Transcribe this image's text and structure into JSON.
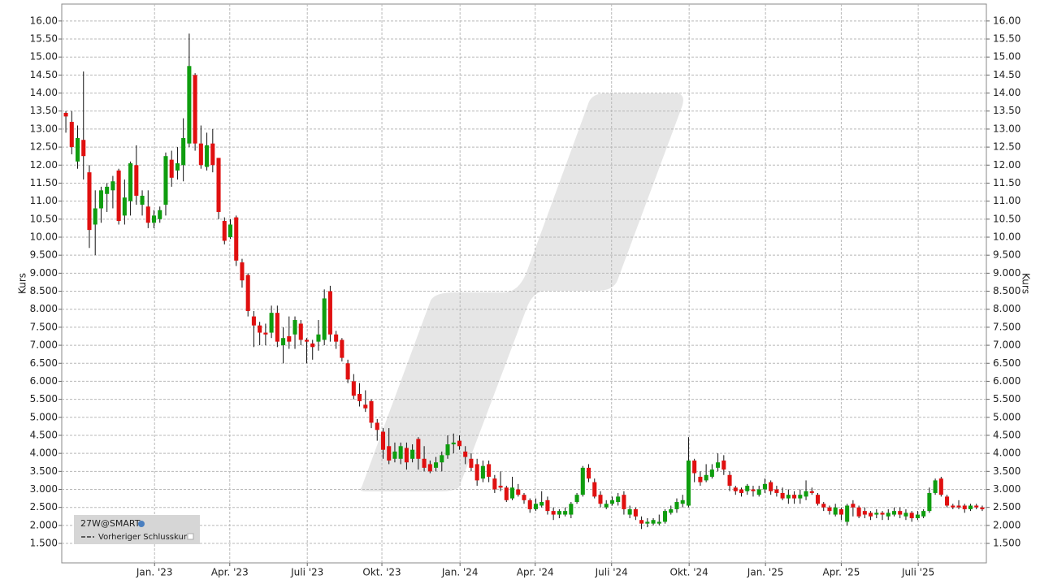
{
  "chart_data": {
    "type": "candlestick",
    "y_label": "Kurs",
    "legend_title": "27W@SMART",
    "legend_entry": "Vorheriger Schlusskurs",
    "up_color": "#0f9d0f",
    "down_color": "#e01010",
    "wick_color": "#111111",
    "grid": true,
    "ylim": [
      0.96,
      16.47
    ],
    "yticks": [
      {
        "value": 1.5,
        "label": "1.500"
      },
      {
        "value": 2,
        "label": "2.000"
      },
      {
        "value": 2.5,
        "label": "2.500"
      },
      {
        "value": 3,
        "label": "3.000"
      },
      {
        "value": 3.5,
        "label": "3.500"
      },
      {
        "value": 4,
        "label": "4.000"
      },
      {
        "value": 4.5,
        "label": "4.500"
      },
      {
        "value": 5,
        "label": "5.000"
      },
      {
        "value": 5.5,
        "label": "5.500"
      },
      {
        "value": 6,
        "label": "6.000"
      },
      {
        "value": 6.5,
        "label": "6.500"
      },
      {
        "value": 7,
        "label": "7.000"
      },
      {
        "value": 7.5,
        "label": "7.500"
      },
      {
        "value": 8,
        "label": "8.000"
      },
      {
        "value": 8.5,
        "label": "8.500"
      },
      {
        "value": 9,
        "label": "9.000"
      },
      {
        "value": 9.5,
        "label": "9.500"
      },
      {
        "value": 10,
        "label": "10.00"
      },
      {
        "value": 10.5,
        "label": "10.50"
      },
      {
        "value": 11,
        "label": "11.00"
      },
      {
        "value": 11.5,
        "label": "11.50"
      },
      {
        "value": 12,
        "label": "12.00"
      },
      {
        "value": 12.5,
        "label": "12.50"
      },
      {
        "value": 13,
        "label": "13.00"
      },
      {
        "value": 13.5,
        "label": "13.50"
      },
      {
        "value": 14,
        "label": "14.00"
      },
      {
        "value": 14.5,
        "label": "14.50"
      },
      {
        "value": 15,
        "label": "15.00"
      },
      {
        "value": 15.5,
        "label": "15.50"
      },
      {
        "value": 16,
        "label": "16.00"
      }
    ],
    "xlim": [
      -0.7,
      156.7
    ],
    "xticks": [
      {
        "value": 15.1,
        "label": "Jan. '23"
      },
      {
        "value": 27.9,
        "label": "Apr. '23"
      },
      {
        "value": 41.1,
        "label": "Juli '23"
      },
      {
        "value": 53.8,
        "label": "Okt. '23"
      },
      {
        "value": 67.1,
        "label": "Jan. '24"
      },
      {
        "value": 79.9,
        "label": "Apr. '24"
      },
      {
        "value": 92.9,
        "label": "Juli '24"
      },
      {
        "value": 106.1,
        "label": "Okt. '24"
      },
      {
        "value": 119.1,
        "label": "Jan. '25"
      },
      {
        "value": 132.0,
        "label": "Apr. '25"
      },
      {
        "value": 145.1,
        "label": "Juli '25"
      }
    ],
    "open": [
      13.45,
      13.2,
      12.1,
      12.7,
      11.8,
      10.35,
      10.8,
      11.2,
      11.3,
      11.85,
      10.6,
      11.0,
      12.0,
      10.9,
      10.85,
      10.4,
      10.5,
      10.9,
      12.15,
      11.85,
      12.0,
      12.6,
      14.5,
      12.6,
      11.95,
      12.6,
      12.2,
      10.45,
      10.0,
      10.55,
      9.3,
      8.95,
      7.8,
      7.55,
      7.35,
      7.35,
      7.9,
      7.0,
      7.25,
      7.3,
      7.6,
      7.15,
      7.05,
      7.1,
      7.15,
      8.5,
      7.3,
      7.15,
      6.5,
      6.0,
      5.65,
      5.35,
      5.45,
      4.85,
      4.6,
      4.2,
      3.85,
      3.85,
      4.15,
      3.85,
      4.4,
      3.85,
      3.7,
      3.6,
      3.75,
      3.95,
      4.25,
      4.35,
      4.05,
      3.85,
      3.7,
      3.3,
      3.7,
      3.3,
      3.1,
      3.05,
      2.75,
      3.0,
      2.85,
      2.7,
      2.45,
      2.55,
      2.7,
      2.4,
      2.3,
      2.3,
      2.3,
      2.65,
      2.85,
      3.6,
      3.2,
      2.85,
      2.5,
      2.6,
      2.65,
      2.85,
      2.3,
      2.45,
      2.15,
      2.05,
      2.05,
      2.05,
      2.1,
      2.35,
      2.45,
      2.6,
      2.55,
      3.8,
      3.35,
      3.25,
      3.35,
      3.6,
      3.8,
      3.4,
      3.05,
      3.0,
      2.95,
      3.0,
      2.85,
      3.0,
      3.2,
      3.0,
      2.9,
      2.75,
      2.85,
      2.75,
      2.8,
      2.95,
      2.85,
      2.6,
      2.5,
      2.3,
      2.45,
      2.1,
      2.6,
      2.5,
      2.4,
      2.35,
      2.3,
      2.35,
      2.25,
      2.3,
      2.4,
      2.25,
      2.35,
      2.2,
      2.25,
      2.4,
      2.9,
      3.3,
      2.8,
      2.55,
      2.55,
      2.55,
      2.45,
      2.55,
      2.5
    ],
    "high": [
      13.5,
      13.5,
      13.1,
      14.6,
      12.0,
      11.3,
      11.4,
      11.5,
      11.7,
      11.9,
      11.6,
      12.1,
      12.55,
      11.3,
      11.3,
      10.75,
      10.85,
      12.35,
      12.4,
      12.5,
      13.3,
      15.65,
      14.55,
      13.1,
      12.9,
      13.0,
      12.2,
      10.55,
      10.5,
      10.6,
      9.4,
      9.0,
      7.95,
      7.65,
      7.6,
      8.1,
      8.1,
      7.5,
      7.8,
      7.8,
      7.7,
      7.2,
      7.15,
      7.7,
      8.55,
      8.65,
      7.4,
      7.2,
      6.6,
      6.2,
      5.95,
      5.75,
      5.5,
      4.95,
      4.7,
      4.7,
      4.3,
      4.3,
      4.3,
      4.25,
      4.45,
      4.2,
      3.8,
      3.9,
      4.05,
      4.5,
      4.55,
      4.5,
      4.2,
      4.0,
      3.85,
      3.8,
      3.8,
      3.4,
      3.5,
      3.1,
      3.35,
      3.15,
      2.9,
      2.75,
      2.75,
      2.95,
      2.8,
      2.5,
      2.45,
      2.5,
      2.65,
      2.9,
      3.65,
      3.7,
      3.3,
      2.95,
      2.7,
      2.8,
      2.9,
      2.95,
      2.55,
      2.5,
      2.25,
      2.2,
      2.2,
      2.3,
      2.45,
      2.55,
      2.75,
      2.85,
      4.45,
      3.85,
      3.5,
      3.7,
      3.7,
      4.0,
      3.95,
      3.5,
      3.1,
      3.05,
      3.15,
      3.1,
      3.1,
      3.3,
      3.25,
      3.1,
      3.05,
      3.0,
      2.95,
      3.0,
      3.25,
      3.05,
      2.9,
      2.65,
      2.55,
      2.6,
      2.5,
      2.6,
      2.7,
      2.55,
      2.5,
      2.4,
      2.45,
      2.4,
      2.45,
      2.5,
      2.5,
      2.45,
      2.4,
      2.4,
      2.45,
      3.05,
      3.3,
      3.35,
      2.85,
      2.6,
      2.7,
      2.6,
      2.6,
      2.6,
      2.55
    ],
    "low": [
      12.9,
      12.3,
      11.9,
      11.6,
      9.7,
      9.5,
      10.4,
      10.7,
      10.8,
      10.35,
      10.35,
      10.6,
      10.9,
      10.6,
      10.25,
      10.25,
      10.4,
      10.6,
      11.4,
      11.6,
      11.55,
      12.5,
      12.4,
      11.9,
      11.85,
      11.8,
      10.5,
      9.8,
      9.95,
      9.2,
      8.6,
      7.8,
      6.95,
      7.0,
      7.0,
      7.2,
      6.95,
      6.5,
      6.9,
      6.9,
      7.0,
      6.5,
      6.6,
      6.85,
      7.0,
      7.1,
      6.9,
      6.55,
      5.95,
      5.5,
      5.3,
      5.15,
      4.7,
      4.35,
      3.85,
      3.7,
      3.75,
      3.7,
      3.55,
      3.75,
      3.55,
      3.5,
      3.45,
      3.5,
      3.5,
      3.85,
      4.0,
      4.1,
      3.7,
      3.5,
      3.1,
      3.2,
      3.2,
      2.9,
      2.95,
      2.65,
      2.7,
      2.8,
      2.6,
      2.35,
      2.4,
      2.5,
      2.3,
      2.15,
      2.2,
      2.25,
      2.2,
      2.6,
      2.8,
      3.2,
      2.75,
      2.5,
      2.45,
      2.55,
      2.55,
      2.3,
      2.2,
      2.15,
      1.9,
      1.95,
      2.0,
      2.0,
      2.05,
      2.3,
      2.35,
      2.5,
      2.5,
      3.2,
      3.1,
      3.2,
      3.3,
      3.5,
      3.4,
      2.95,
      2.85,
      2.8,
      2.85,
      2.8,
      2.8,
      2.9,
      2.85,
      2.8,
      2.7,
      2.6,
      2.6,
      2.6,
      2.7,
      2.85,
      2.55,
      2.4,
      2.3,
      2.25,
      2.15,
      2.0,
      2.25,
      2.2,
      2.2,
      2.15,
      2.2,
      2.15,
      2.15,
      2.25,
      2.2,
      2.15,
      2.1,
      2.15,
      2.2,
      2.35,
      2.85,
      2.8,
      2.5,
      2.45,
      2.45,
      2.35,
      2.4,
      2.45,
      2.4
    ],
    "close": [
      13.35,
      12.5,
      12.75,
      12.25,
      10.2,
      10.8,
      11.3,
      11.4,
      11.55,
      10.45,
      11.1,
      12.05,
      11.15,
      11.15,
      10.4,
      10.6,
      10.75,
      12.25,
      11.65,
      12.05,
      12.75,
      14.75,
      12.6,
      12.0,
      12.55,
      12.0,
      10.7,
      9.9,
      10.35,
      9.35,
      8.8,
      7.95,
      7.55,
      7.35,
      7.3,
      7.9,
      7.1,
      7.2,
      7.1,
      7.7,
      7.15,
      7.1,
      6.95,
      7.3,
      8.3,
      7.3,
      7.1,
      6.65,
      6.05,
      5.6,
      5.45,
      5.25,
      4.85,
      4.65,
      4.1,
      3.8,
      4.05,
      4.2,
      3.75,
      4.1,
      3.85,
      3.6,
      3.5,
      3.75,
      3.95,
      4.25,
      4.3,
      4.2,
      3.9,
      3.6,
      3.25,
      3.65,
      3.35,
      3.0,
      3.05,
      2.7,
      3.05,
      2.85,
      2.7,
      2.45,
      2.6,
      2.65,
      2.4,
      2.3,
      2.4,
      2.4,
      2.6,
      2.85,
      3.6,
      3.3,
      2.8,
      2.6,
      2.6,
      2.7,
      2.8,
      2.45,
      2.45,
      2.25,
      2.05,
      2.1,
      2.15,
      2.1,
      2.4,
      2.45,
      2.65,
      2.7,
      3.8,
      3.45,
      3.2,
      3.4,
      3.55,
      3.75,
      3.55,
      3.1,
      2.95,
      2.9,
      3.1,
      2.95,
      3.0,
      3.15,
      2.95,
      2.9,
      2.75,
      2.85,
      2.75,
      2.85,
      2.95,
      2.9,
      2.6,
      2.5,
      2.4,
      2.5,
      2.3,
      2.55,
      2.5,
      2.25,
      2.3,
      2.25,
      2.35,
      2.3,
      2.35,
      2.4,
      2.3,
      2.35,
      2.2,
      2.3,
      2.4,
      2.9,
      3.25,
      2.85,
      2.55,
      2.5,
      2.5,
      2.45,
      2.55,
      2.5,
      2.45
    ]
  }
}
